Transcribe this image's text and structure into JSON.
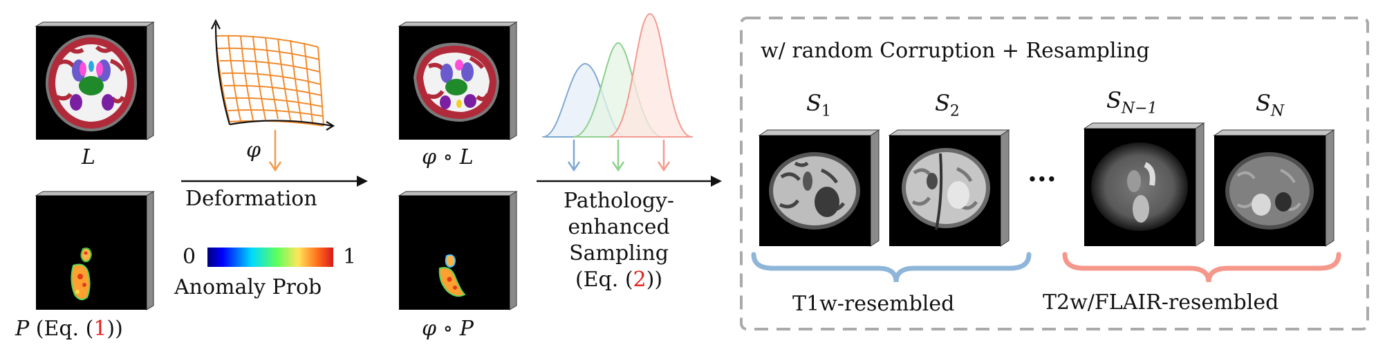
{
  "labels": {
    "L": "L",
    "P_sym": "P",
    "P_eq_open": "(Eq. (",
    "P_eq_num": "1",
    "P_eq_close": "))",
    "phi": "φ",
    "phi_L": "φ ∘ L",
    "phi_P": "φ ∘ P",
    "deformation": "Deformation",
    "pathology_line1": "Pathology-",
    "pathology_line2": "enhanced",
    "pathology_line3": "Sampling",
    "pathology_eq_open": "(Eq. (",
    "pathology_eq_num": "2",
    "pathology_eq_close": "))",
    "colorbar_min": "0",
    "colorbar_max": "1",
    "colorbar_title": "Anomaly Prob",
    "box_title": "w/ random Corruption + Resampling",
    "s1_base": "S",
    "s1_sub": "1",
    "s2_base": "S",
    "s2_sub": "2",
    "sn1_base": "S",
    "sn1_sub": "N−1",
    "sn_base": "S",
    "sn_sub": "N",
    "ellipsis": "···",
    "group_t1": "T1w-resembled",
    "group_t2": "T2w/FLAIR-resembled"
  },
  "colors": {
    "arrow_orange": "#f39a4c",
    "grid_orange": "#f08a2c",
    "dist_blue": "#7ea8d2",
    "dist_green": "#8ecf8e",
    "dist_red": "#f39a8e",
    "brace_blue": "#8fb6d9",
    "brace_red": "#f5978b",
    "box_dash": "#a9aaab"
  },
  "icons": [
    "deformation-grid-icon",
    "distribution-curves-icon"
  ]
}
